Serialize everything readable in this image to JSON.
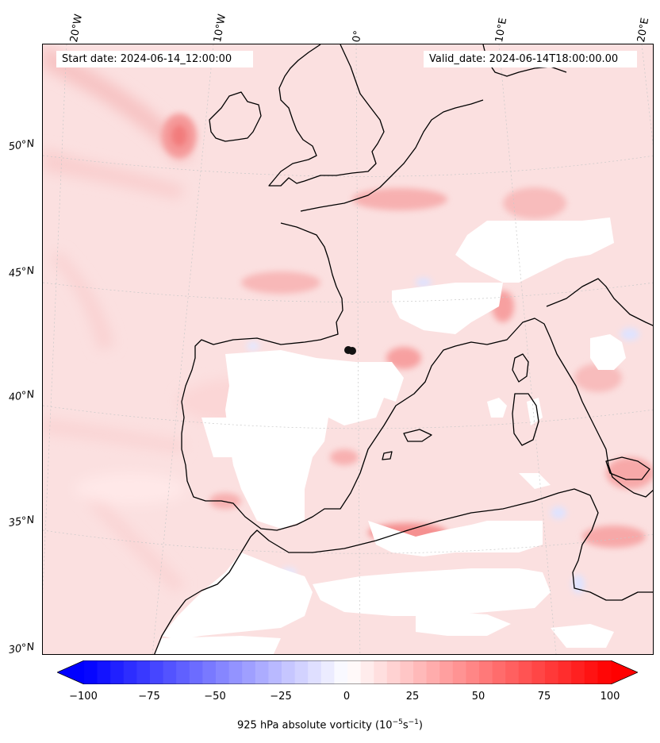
{
  "map": {
    "start_label": "Start date: 2024-06-14_12:00:00",
    "valid_label": "Valid_date: 2024-06-14T18:00:00.00",
    "lon_labels": [
      "20°W",
      "10°W",
      "0°",
      "10°E",
      "20°E"
    ],
    "lat_labels": [
      "50°N",
      "45°N",
      "40°N",
      "35°N",
      "30°N"
    ],
    "colors": {
      "background": "#fbe3e3",
      "land_light": "#fde8e8",
      "positive_strong": "#ff8c8c",
      "positive_mid": "#ffc4c4",
      "negative": "#e0e6ff",
      "coastline": "#000000"
    }
  },
  "colorbar": {
    "label_prefix": "925 hPa absolute vorticity (10",
    "label_exp1": "−5",
    "label_mid": "s",
    "label_exp2": "−1",
    "label_suffix": ")",
    "ticks": [
      "−100",
      "−75",
      "−50",
      "−25",
      "0",
      "25",
      "50",
      "75",
      "100"
    ],
    "colormap": "bwr",
    "range": [
      -100,
      100
    ],
    "levels": 40
  }
}
